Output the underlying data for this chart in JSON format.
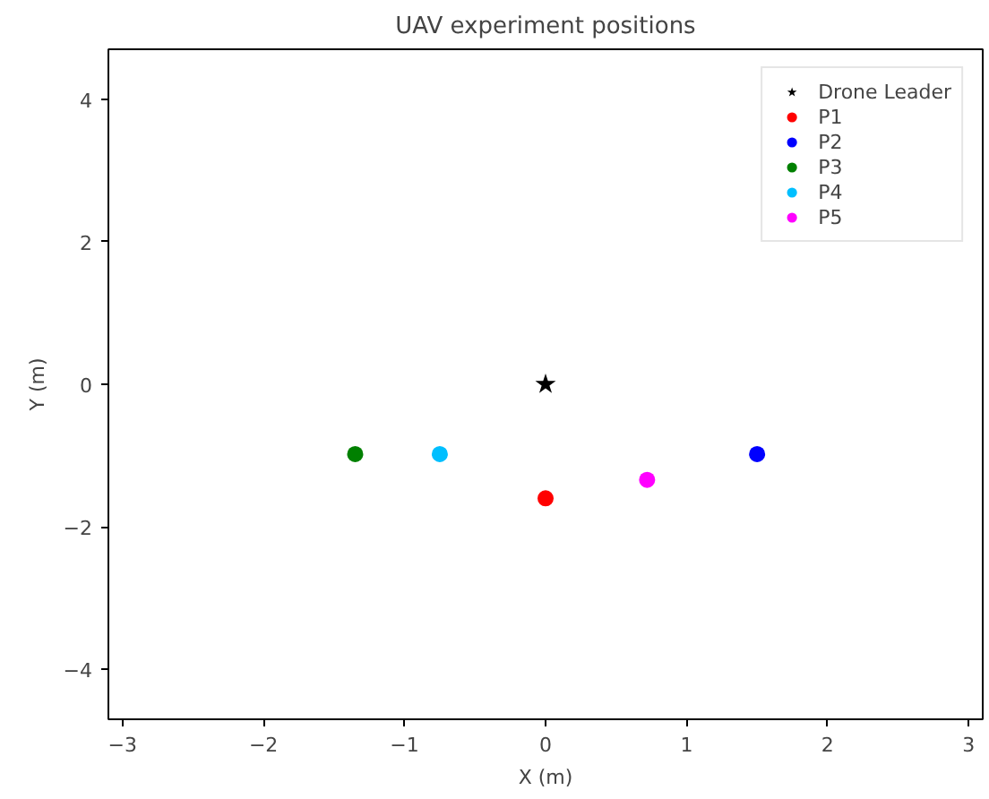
{
  "chart_data": {
    "type": "scatter",
    "title": "UAV experiment positions",
    "xlabel": "X (m)",
    "ylabel": "Y (m)",
    "xlim": [
      -3.1,
      3.1
    ],
    "ylim": [
      -4.7,
      4.7
    ],
    "xticks": [
      {
        "value": -3,
        "label": "−3"
      },
      {
        "value": -2,
        "label": "−2"
      },
      {
        "value": -1,
        "label": "−1"
      },
      0,
      1,
      2,
      3
    ],
    "yticks": [
      {
        "value": -4,
        "label": "−4"
      },
      {
        "value": -2,
        "label": "−2"
      },
      0,
      2,
      4
    ],
    "grid": false,
    "legend": "top right",
    "series": [
      {
        "name": "Drone Leader",
        "color": "#000000",
        "marker": "star",
        "x": [
          0
        ],
        "values": [
          0
        ]
      },
      {
        "name": "P1",
        "color": "#ff0000",
        "marker": "circle",
        "x": [
          0
        ],
        "values": [
          -1.6
        ]
      },
      {
        "name": "P2",
        "color": "#0000ff",
        "marker": "circle",
        "x": [
          1.5
        ],
        "values": [
          -0.98
        ]
      },
      {
        "name": "P3",
        "color": "#008000",
        "marker": "circle",
        "x": [
          -1.35
        ],
        "values": [
          -0.98
        ]
      },
      {
        "name": "P4",
        "color": "#00bfff",
        "marker": "circle",
        "x": [
          -0.75
        ],
        "values": [
          -0.98
        ]
      },
      {
        "name": "P5",
        "color": "#ff00ff",
        "marker": "circle",
        "x": [
          0.72
        ],
        "values": [
          -1.34
        ]
      }
    ]
  }
}
